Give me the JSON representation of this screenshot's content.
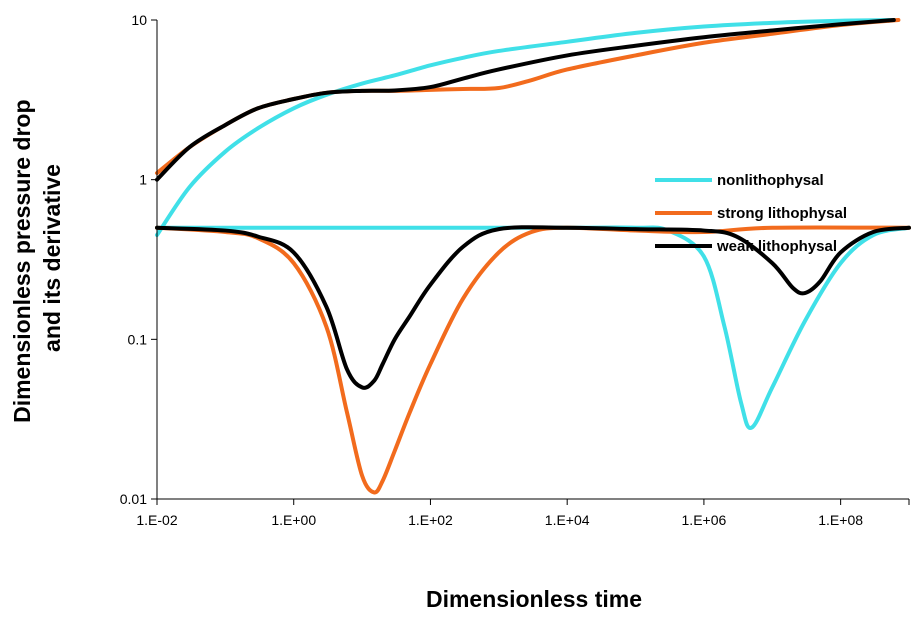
{
  "chart_data": {
    "type": "line",
    "title": "",
    "xlabel": "Dimensionless time",
    "ylabel_lines": [
      "Dimensionless pressure drop",
      "and its derivative"
    ],
    "x_scale": "log",
    "y_scale": "log",
    "xlim": [
      0.01,
      1000000000
    ],
    "ylim": [
      0.01,
      10
    ],
    "x_ticks": [
      {
        "value": 0.01,
        "label": "1.E-02"
      },
      {
        "value": 1,
        "label": "1.E+00"
      },
      {
        "value": 100,
        "label": "1.E+02"
      },
      {
        "value": 10000,
        "label": "1.E+04"
      },
      {
        "value": 1000000,
        "label": "1.E+06"
      },
      {
        "value": 100000000,
        "label": "1.E+08"
      }
    ],
    "y_ticks": [
      {
        "value": 0.01,
        "label": "0.01"
      },
      {
        "value": 0.1,
        "label": "0.1"
      },
      {
        "value": 1,
        "label": "1"
      },
      {
        "value": 10,
        "label": "10"
      }
    ],
    "legend_position": "top-right",
    "legend": [
      {
        "name": "nonlithophysal",
        "color": "#40E0E8"
      },
      {
        "name": "strong lithophysal",
        "color": "#F26B1D"
      },
      {
        "name": "weak lithophysal",
        "color": "#000000"
      }
    ],
    "series": [
      {
        "name": "nonlithophysal",
        "role": "pressure",
        "color": "#40E0E8",
        "x": [
          0.01,
          0.03,
          0.1,
          0.3,
          1,
          3,
          10,
          30,
          100,
          300,
          1000,
          10000,
          100000,
          1000000,
          10000000,
          100000000,
          600000000
        ],
        "y": [
          0.45,
          0.9,
          1.5,
          2.1,
          2.8,
          3.4,
          4.0,
          4.5,
          5.2,
          5.8,
          6.4,
          7.3,
          8.3,
          9.1,
          9.6,
          9.9,
          10.0
        ]
      },
      {
        "name": "nonlithophysal",
        "role": "derivative",
        "color": "#40E0E8",
        "x": [
          0.01,
          1,
          100,
          10000,
          100000,
          300000,
          1000000,
          2000000,
          3500000,
          5000000,
          10000000,
          30000000,
          100000000,
          300000000,
          1000000000
        ],
        "y": [
          0.5,
          0.5,
          0.5,
          0.5,
          0.5,
          0.48,
          0.33,
          0.12,
          0.04,
          0.028,
          0.05,
          0.13,
          0.3,
          0.45,
          0.5
        ]
      },
      {
        "name": "strong lithophysal",
        "role": "pressure",
        "color": "#F26B1D",
        "x": [
          0.01,
          0.03,
          0.1,
          0.3,
          1,
          3,
          10,
          30,
          100,
          300,
          1000,
          3000,
          10000,
          100000,
          1000000,
          10000000,
          100000000,
          700000000
        ],
        "y": [
          1.1,
          1.6,
          2.2,
          2.8,
          3.2,
          3.5,
          3.6,
          3.6,
          3.65,
          3.7,
          3.75,
          4.2,
          4.9,
          6.0,
          7.2,
          8.2,
          9.3,
          10.0
        ]
      },
      {
        "name": "strong lithophysal",
        "role": "derivative",
        "color": "#F26B1D",
        "x": [
          0.01,
          0.1,
          0.3,
          1,
          3,
          6,
          10,
          15,
          20,
          30,
          50,
          100,
          300,
          1000,
          3000,
          10000,
          100000,
          1000000,
          10000000,
          1000000000
        ],
        "y": [
          0.5,
          0.47,
          0.43,
          0.3,
          0.12,
          0.035,
          0.014,
          0.011,
          0.013,
          0.02,
          0.035,
          0.07,
          0.18,
          0.35,
          0.47,
          0.5,
          0.48,
          0.47,
          0.5,
          0.5
        ],
        "dip_min": 0.011
      },
      {
        "name": "weak lithophysal",
        "role": "pressure",
        "color": "#000000",
        "x": [
          0.01,
          0.03,
          0.1,
          0.3,
          1,
          3,
          10,
          30,
          100,
          300,
          1000,
          10000,
          100000,
          1000000,
          10000000,
          100000000,
          600000000
        ],
        "y": [
          1.0,
          1.6,
          2.2,
          2.8,
          3.2,
          3.5,
          3.6,
          3.62,
          3.8,
          4.3,
          4.9,
          6.0,
          6.9,
          7.8,
          8.6,
          9.4,
          10.0
        ]
      },
      {
        "name": "weak lithophysal",
        "role": "derivative",
        "color": "#000000",
        "x": [
          0.01,
          0.1,
          0.3,
          1,
          3,
          6,
          10,
          15,
          20,
          30,
          50,
          100,
          300,
          1000,
          10000,
          100000,
          1000000,
          3000000,
          10000000,
          20000000,
          30000000,
          50000000,
          100000000,
          300000000,
          1000000000
        ],
        "y": [
          0.5,
          0.48,
          0.44,
          0.35,
          0.16,
          0.065,
          0.05,
          0.055,
          0.07,
          0.1,
          0.14,
          0.22,
          0.38,
          0.49,
          0.5,
          0.49,
          0.48,
          0.44,
          0.3,
          0.21,
          0.195,
          0.23,
          0.35,
          0.47,
          0.5
        ],
        "dip_min": 0.047
      }
    ]
  }
}
